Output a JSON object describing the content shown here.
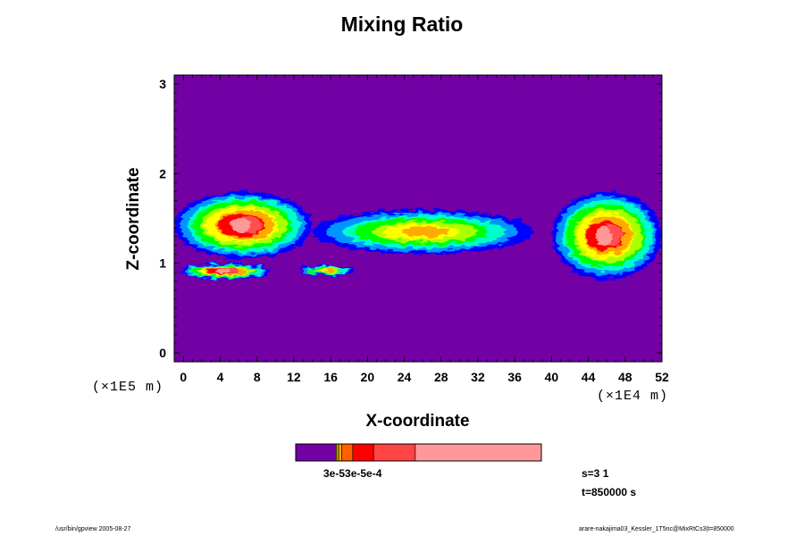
{
  "chart_data": {
    "type": "heatmap",
    "title": "Mixing Ratio",
    "xlabel": "X-coordinate",
    "ylabel": "Z-coordinate",
    "x_unit_note": "(×1E4 m)",
    "y_unit_note": "(×1E5 m)",
    "xlim": [
      -1,
      52
    ],
    "ylim": [
      -0.1,
      3.1
    ],
    "x_ticks": [
      "0",
      "4",
      "8",
      "12",
      "16",
      "20",
      "24",
      "28",
      "32",
      "36",
      "40",
      "44",
      "48",
      "52"
    ],
    "y_ticks": [
      "0",
      "1",
      "2",
      "3"
    ],
    "background_value_color": "#7300a4",
    "palette": [
      "#7300a4",
      "#0000ff",
      "#0096ff",
      "#00ffc8",
      "#00ff00",
      "#aaff00",
      "#ffff00",
      "#ffaa00",
      "#ff0000",
      "#ff5050",
      "#ff9999"
    ],
    "features": [
      {
        "name": "layer-west",
        "x_range": [
          -1,
          14
        ],
        "z_range": [
          1.05,
          1.8
        ],
        "peak": "high"
      },
      {
        "name": "lower-strip-west",
        "x_range": [
          -0.5,
          9.5
        ],
        "z_range": [
          0.82,
          1.0
        ],
        "peak": "high"
      },
      {
        "name": "lower-strip-mid",
        "x_range": [
          12.5,
          18.5
        ],
        "z_range": [
          0.86,
          0.98
        ],
        "peak": "mid"
      },
      {
        "name": "layer-center",
        "x_range": [
          14,
          38
        ],
        "z_range": [
          1.1,
          1.6
        ],
        "peak": "mid"
      },
      {
        "name": "layer-east",
        "x_range": [
          40,
          52
        ],
        "z_range": [
          0.82,
          1.8
        ],
        "peak": "high"
      }
    ],
    "colorbar": {
      "tick_label": "3e-53e-5e-4",
      "segment_fractions": [
        0.165,
        0.01,
        0.012,
        0.045,
        0.085,
        0.17,
        0.513
      ],
      "segment_colors": [
        "#7300a4",
        "#cc9900",
        "#ffaa00",
        "#ff6000",
        "#ff0000",
        "#ff4444",
        "#ff9999"
      ]
    }
  },
  "run_info": {
    "step": "s=3 1",
    "time": "t=850000 s"
  },
  "footer": {
    "left": "/usr/bin/gpview 2005-08-27",
    "right": "arare-nakajima03_Kessler_1T5nc@MixRtCs3|t=850000"
  }
}
